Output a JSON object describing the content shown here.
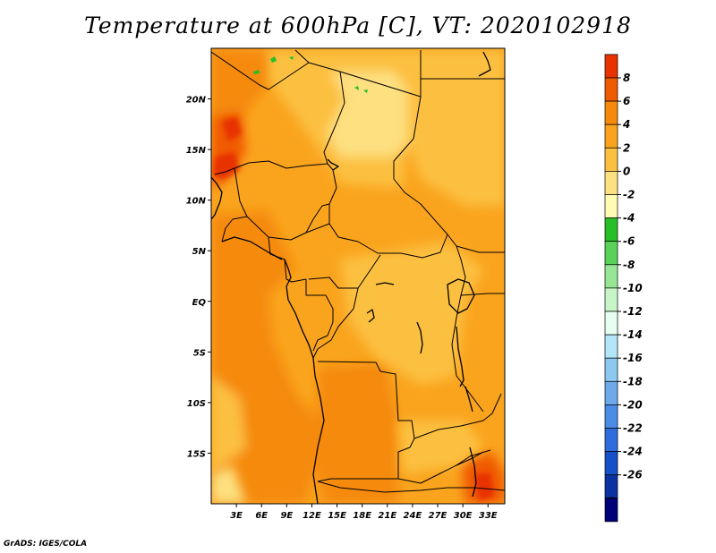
{
  "title": "Temperature at 600hPa [C], VT: 2020102918",
  "credit": "GrADS: IGES/COLA",
  "map": {
    "lon_range": [
      0,
      35
    ],
    "lat_range": [
      -20,
      25
    ],
    "lat_ticks": [
      {
        "value": 20,
        "label": "20N"
      },
      {
        "value": 15,
        "label": "15N"
      },
      {
        "value": 10,
        "label": "10N"
      },
      {
        "value": 5,
        "label": "5N"
      },
      {
        "value": 0,
        "label": "EQ"
      },
      {
        "value": -5,
        "label": "5S"
      },
      {
        "value": -10,
        "label": "10S"
      },
      {
        "value": -15,
        "label": "15S"
      }
    ],
    "lon_ticks": [
      {
        "value": 3,
        "label": "3E"
      },
      {
        "value": 6,
        "label": "6E"
      },
      {
        "value": 9,
        "label": "9E"
      },
      {
        "value": 12,
        "label": "12E"
      },
      {
        "value": 15,
        "label": "15E"
      },
      {
        "value": 18,
        "label": "18E"
      },
      {
        "value": 21,
        "label": "21E"
      },
      {
        "value": 24,
        "label": "24E"
      },
      {
        "value": 27,
        "label": "27E"
      },
      {
        "value": 30,
        "label": "30E"
      },
      {
        "value": 33,
        "label": "33E"
      }
    ]
  },
  "colorbar": {
    "labels": [
      "8",
      "6",
      "4",
      "2",
      "0",
      "-2",
      "-4",
      "-6",
      "-8",
      "-10",
      "-12",
      "-14",
      "-16",
      "-18",
      "-20",
      "-22",
      "-24",
      "-26"
    ],
    "colors": [
      "#c81400",
      "#e83200",
      "#f05a00",
      "#f58a0a",
      "#faa41e",
      "#fcc040",
      "#fde080",
      "#fffab4",
      "#28be28",
      "#5ad25a",
      "#96e696",
      "#c8f5c8",
      "#e6fff0",
      "#b4e6fa",
      "#8cc8f0",
      "#6eaaeb",
      "#4b8ce6",
      "#2d6edc",
      "#1450c8",
      "#0a32a0",
      "#000078",
      "#d2d2ff"
    ]
  }
}
